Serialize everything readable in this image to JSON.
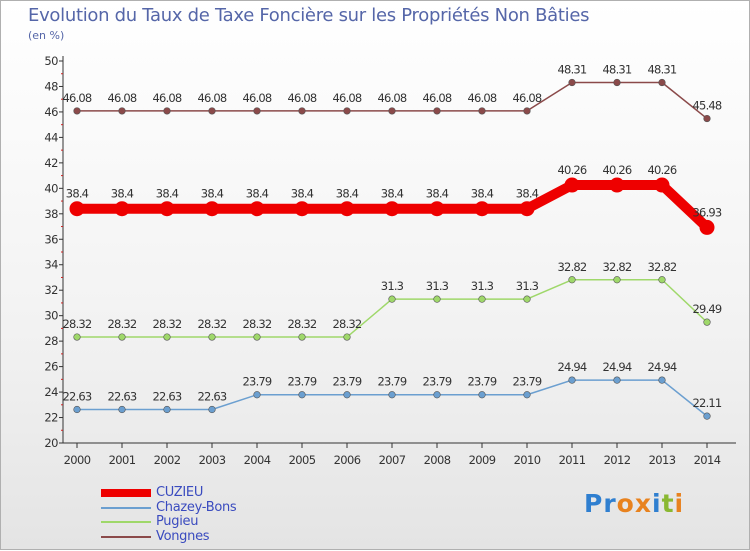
{
  "header": {
    "title": "Evolution du Taux de Taxe Foncière sur les Propriétés Non Bâties",
    "unit": "(en %)"
  },
  "logo": {
    "text": "Proxiti",
    "letters": [
      "P",
      "r",
      "o",
      "x",
      "i",
      "t",
      "i"
    ],
    "colors": [
      "#2f7fd0",
      "#2f7fd0",
      "#e8821e",
      "#e8821e",
      "#2f7fd0",
      "#8ab832",
      "#e8821e"
    ]
  },
  "chart_data": {
    "type": "line",
    "title": "Evolution du Taux de Taxe Foncière sur les Propriétés Non Bâties",
    "ylabel": "(en %)",
    "xlabel": "",
    "ylim": [
      20,
      50
    ],
    "yticks": [
      20,
      22,
      24,
      26,
      28,
      30,
      32,
      34,
      36,
      38,
      40,
      42,
      44,
      46,
      48,
      50
    ],
    "categories": [
      "2000",
      "2001",
      "2002",
      "2003",
      "2004",
      "2005",
      "2006",
      "2007",
      "2008",
      "2009",
      "2010",
      "2011",
      "2012",
      "2013",
      "2014"
    ],
    "grid": false,
    "legend_position": "bottom-left",
    "series": [
      {
        "name": "Vongnes",
        "color": "#8b4a4a",
        "emphasis": false,
        "values": [
          46.08,
          46.08,
          46.08,
          46.08,
          46.08,
          46.08,
          46.08,
          46.08,
          46.08,
          46.08,
          46.08,
          48.31,
          48.31,
          48.31,
          45.48
        ],
        "labels": [
          "46.08",
          "46.08",
          "46.08",
          "46.08",
          "46.08",
          "46.08",
          "46.08",
          "46.08",
          "46.08",
          "46.08",
          "46.08",
          "48.31",
          "48.31",
          "48.31",
          "45.48"
        ]
      },
      {
        "name": "CUZIEU",
        "color": "#ee0000",
        "emphasis": true,
        "values": [
          38.4,
          38.4,
          38.4,
          38.4,
          38.4,
          38.4,
          38.4,
          38.4,
          38.4,
          38.4,
          38.4,
          40.26,
          40.26,
          40.26,
          36.93
        ],
        "labels": [
          "38.4",
          "38.4",
          "38.4",
          "38.4",
          "38.4",
          "38.4",
          "38.4",
          "38.4",
          "38.4",
          "38.4",
          "38.4",
          "40.26",
          "40.26",
          "40.26",
          "36.93"
        ]
      },
      {
        "name": "Pugieu",
        "color": "#9fd86a",
        "emphasis": false,
        "values": [
          28.32,
          28.32,
          28.32,
          28.32,
          28.32,
          28.32,
          28.32,
          31.3,
          31.3,
          31.3,
          31.3,
          32.82,
          32.82,
          32.82,
          29.49
        ],
        "labels": [
          "28.32",
          "28.32",
          "28.32",
          "28.32",
          "28.32",
          "28.32",
          "28.32",
          "31.3",
          "31.3",
          "31.3",
          "31.3",
          "32.82",
          "32.82",
          "32.82",
          "29.49"
        ]
      },
      {
        "name": "Chazey-Bons",
        "color": "#6b9fd0",
        "emphasis": false,
        "values": [
          22.63,
          22.63,
          22.63,
          22.63,
          23.79,
          23.79,
          23.79,
          23.79,
          23.79,
          23.79,
          23.79,
          24.94,
          24.94,
          24.94,
          22.11
        ],
        "labels": [
          "22.63",
          "22.63",
          "22.63",
          "22.63",
          "23.79",
          "23.79",
          "23.79",
          "23.79",
          "23.79",
          "23.79",
          "23.79",
          "24.94",
          "24.94",
          "24.94",
          "22.11"
        ]
      }
    ],
    "legend": [
      {
        "name": "CUZIEU",
        "color": "#ee0000",
        "emphasis": true
      },
      {
        "name": "Chazey-Bons",
        "color": "#6b9fd0",
        "emphasis": false
      },
      {
        "name": "Pugieu",
        "color": "#9fd86a",
        "emphasis": false
      },
      {
        "name": "Vongnes",
        "color": "#8b4a4a",
        "emphasis": false
      }
    ]
  }
}
